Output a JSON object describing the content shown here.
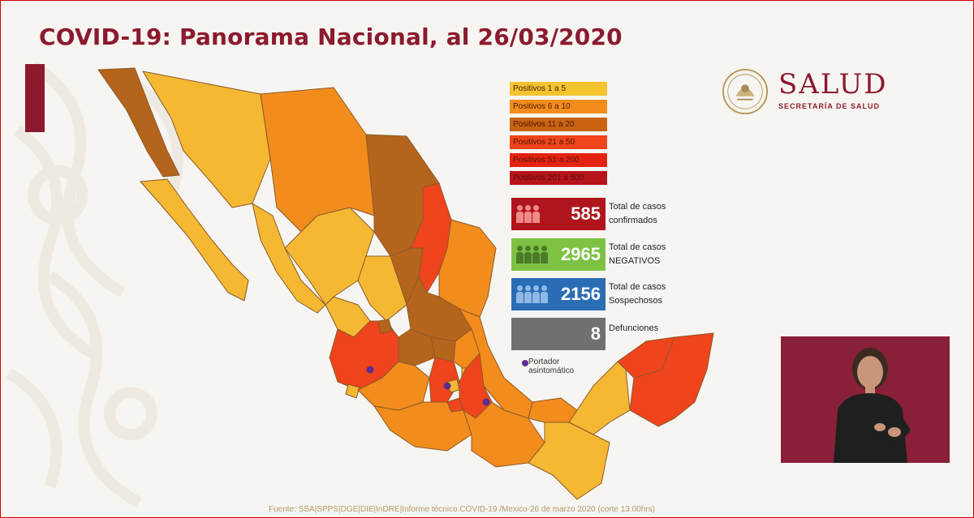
{
  "header": {
    "title": "COVID-19: Panorama Nacional, al 26/03/2020"
  },
  "legend": {
    "items": [
      {
        "label": "Positivos 1 a 5",
        "color": "#f4c430"
      },
      {
        "label": "Positivos 6 a 10",
        "color": "#f28c1c"
      },
      {
        "label": "Positivos 11 a 20",
        "color": "#c96312"
      },
      {
        "label": "Positivos 21 a 50",
        "color": "#f0441c"
      },
      {
        "label": "Positivos 51 a 200",
        "color": "#e52212"
      },
      {
        "label": "Positivos 201 a 500",
        "color": "#b5141a"
      }
    ]
  },
  "stats": {
    "confirmed": {
      "value": "585",
      "label_line1": "Total de casos",
      "label_line2": "confirmados",
      "color": "#b0141c",
      "icon": "people-icon"
    },
    "negative": {
      "value": "2965",
      "label_line1": "Total de casos",
      "label_line2": "NEGATIVOS",
      "color": "#7dc242",
      "icon": "group-icon"
    },
    "suspected": {
      "value": "2156",
      "label_line1": "Total de casos",
      "label_line2": "Sospechosos",
      "color": "#2a6db5",
      "icon": "people-icon"
    },
    "deaths": {
      "value": "8",
      "label": "Defunciones",
      "color": "#707070"
    }
  },
  "portador": {
    "line1": "Portador",
    "line2": "asintomático",
    "color": "#5c2d91"
  },
  "logo": {
    "name": "SALUD",
    "subtitle": "SECRETARÍA DE SALUD"
  },
  "footer": {
    "source": "Fuente: SSA|SPPS|DGE|DIE|InDRE|Informe técnico.COVID-19 /Mexico-26 de marzo 2020 (corte 13:00hrs)"
  }
}
